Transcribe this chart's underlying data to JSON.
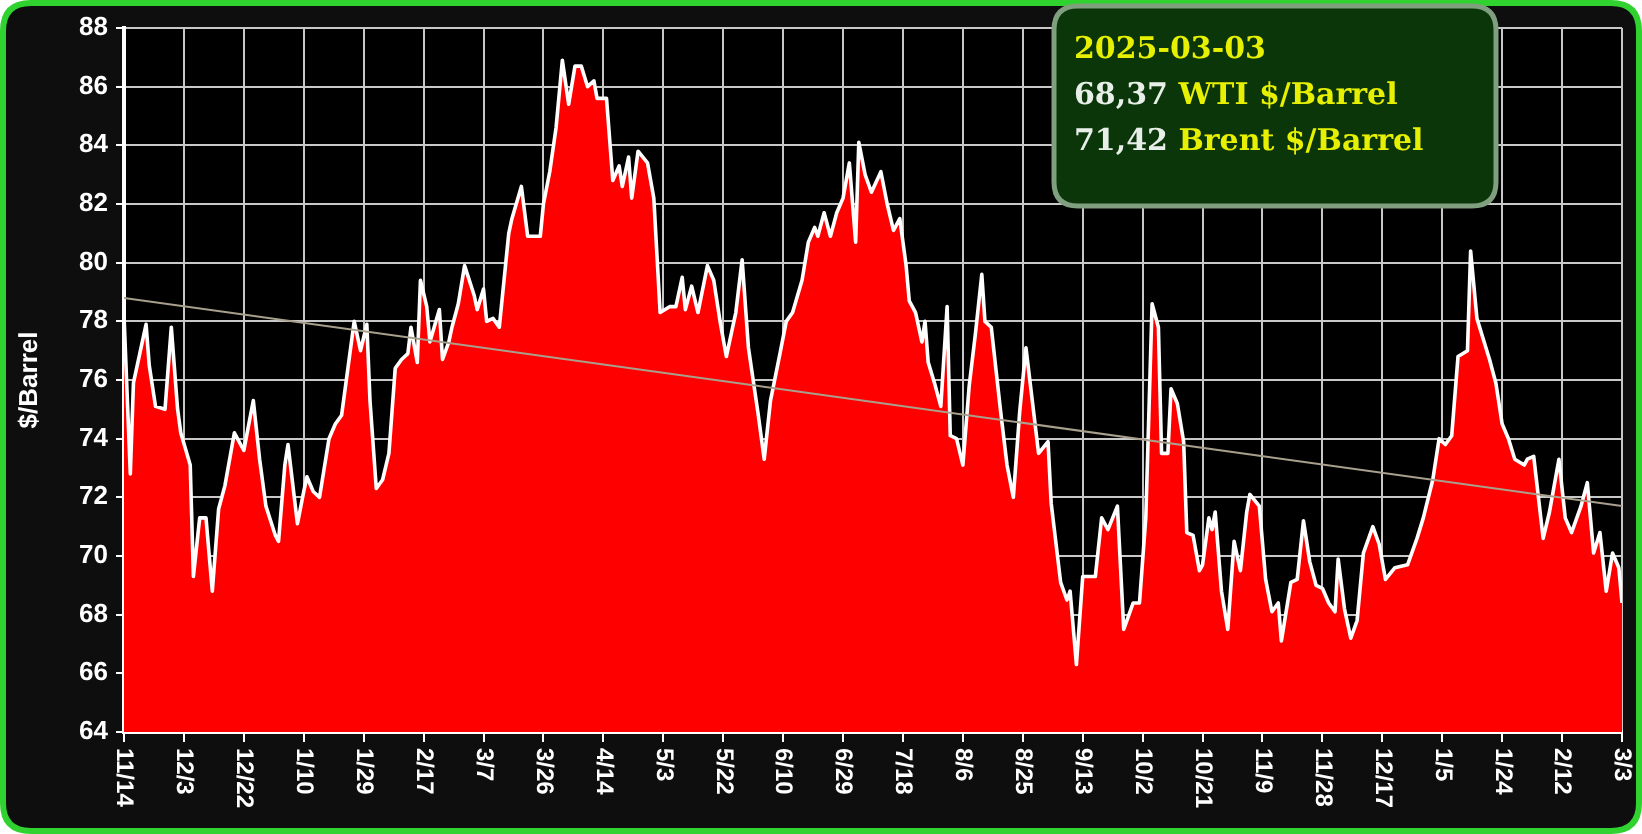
{
  "chart_data": {
    "type": "area",
    "ylabel": "$/Barrel",
    "annotations": [
      "2025-03-03",
      "68,37 WTI $/Barrel",
      "71,42 Brent $/Barrel"
    ],
    "x": [
      "2023-11-14",
      "2023-11-16",
      "2023-11-17",
      "2023-11-21",
      "2023-11-22",
      "2023-11-24",
      "2023-11-27",
      "2023-11-29",
      "2023-12-01",
      "2023-12-02",
      "2023-12-05",
      "2023-12-06",
      "2023-12-08",
      "2023-12-10",
      "2023-12-12",
      "2023-12-14",
      "2023-12-16",
      "2023-12-19",
      "2023-12-22",
      "2023-12-25",
      "2023-12-27",
      "2023-12-29",
      "2024-01-01",
      "2024-01-02",
      "2024-01-04",
      "2024-01-05",
      "2024-01-08",
      "2024-01-10",
      "2024-01-11",
      "2024-01-13",
      "2024-01-15",
      "2024-01-18",
      "2024-01-20",
      "2024-01-22",
      "2024-01-26",
      "2024-01-28",
      "2024-01-30",
      "2024-01-31",
      "2024-02-02",
      "2024-02-04",
      "2024-02-06",
      "2024-02-08",
      "2024-02-10",
      "2024-02-12",
      "2024-02-13",
      "2024-02-15",
      "2024-02-16",
      "2024-02-18",
      "2024-02-19",
      "2024-02-22",
      "2024-02-23",
      "2024-02-25",
      "2024-02-26",
      "2024-02-28",
      "2024-03-01",
      "2024-03-04",
      "2024-03-05",
      "2024-03-07",
      "2024-03-08",
      "2024-03-10",
      "2024-03-12",
      "2024-03-15",
      "2024-03-16",
      "2024-03-19",
      "2024-03-21",
      "2024-03-25",
      "2024-03-26",
      "2024-03-28",
      "2024-03-30",
      "2024-04-01",
      "2024-04-03",
      "2024-04-05",
      "2024-04-07",
      "2024-04-09",
      "2024-04-11",
      "2024-04-12",
      "2024-04-15",
      "2024-04-17",
      "2024-04-19",
      "2024-04-20",
      "2024-04-22",
      "2024-04-23",
      "2024-04-25",
      "2024-04-28",
      "2024-04-30",
      "2024-05-02",
      "2024-05-05",
      "2024-05-07",
      "2024-05-09",
      "2024-05-10",
      "2024-05-12",
      "2024-05-14",
      "2024-05-17",
      "2024-05-19",
      "2024-05-21",
      "2024-05-23",
      "2024-05-25",
      "2024-05-26",
      "2024-05-28",
      "2024-05-30",
      "2024-06-02",
      "2024-06-04",
      "2024-06-06",
      "2024-06-09",
      "2024-06-11",
      "2024-06-13",
      "2024-06-16",
      "2024-06-18",
      "2024-06-20",
      "2024-06-21",
      "2024-06-23",
      "2024-06-25",
      "2024-06-27",
      "2024-06-29",
      "2024-07-01",
      "2024-07-03",
      "2024-07-04",
      "2024-07-06",
      "2024-07-08",
      "2024-07-11",
      "2024-07-13",
      "2024-07-15",
      "2024-07-17",
      "2024-07-19",
      "2024-07-20",
      "2024-07-22",
      "2024-07-24",
      "2024-07-25",
      "2024-07-26",
      "2024-07-28",
      "2024-07-30",
      "2024-08-01",
      "2024-08-02",
      "2024-08-04",
      "2024-08-06",
      "2024-08-08",
      "2024-08-10",
      "2024-08-12",
      "2024-08-13",
      "2024-08-15",
      "2024-08-18",
      "2024-08-20",
      "2024-08-22",
      "2024-08-24",
      "2024-08-26",
      "2024-08-28",
      "2024-08-30",
      "2024-09-02",
      "2024-09-03",
      "2024-09-06",
      "2024-09-08",
      "2024-09-09",
      "2024-09-11",
      "2024-09-13",
      "2024-09-17",
      "2024-09-19",
      "2024-09-21",
      "2024-09-24",
      "2024-09-26",
      "2024-09-29",
      "2024-10-01",
      "2024-10-03",
      "2024-10-05",
      "2024-10-07",
      "2024-10-08",
      "2024-10-10",
      "2024-10-11",
      "2024-10-13",
      "2024-10-15",
      "2024-10-16",
      "2024-10-18",
      "2024-10-20",
      "2024-10-21",
      "2024-10-23",
      "2024-10-24",
      "2024-10-25",
      "2024-10-27",
      "2024-10-29",
      "2024-10-31",
      "2024-11-02",
      "2024-11-04",
      "2024-11-05",
      "2024-11-08",
      "2024-11-10",
      "2024-11-12",
      "2024-11-14",
      "2024-11-15",
      "2024-11-18",
      "2024-11-20",
      "2024-11-22",
      "2024-11-24",
      "2024-11-26",
      "2024-11-28",
      "2024-11-30",
      "2024-12-02",
      "2024-12-03",
      "2024-12-05",
      "2024-12-07",
      "2024-12-09",
      "2024-12-11",
      "2024-12-14",
      "2024-12-16",
      "2024-12-18",
      "2024-12-21",
      "2024-12-25",
      "2024-12-28",
      "2024-12-30",
      "2025-01-02",
      "2025-01-04",
      "2025-01-06",
      "2025-01-08",
      "2025-01-10",
      "2025-01-13",
      "2025-01-14",
      "2025-01-16",
      "2025-01-18",
      "2025-01-20",
      "2025-01-22",
      "2025-01-24",
      "2025-01-26",
      "2025-01-28",
      "2025-01-31",
      "2025-02-01",
      "2025-02-03",
      "2025-02-06",
      "2025-02-08",
      "2025-02-11",
      "2025-02-13",
      "2025-02-15",
      "2025-02-18",
      "2025-02-20",
      "2025-02-22",
      "2025-02-24",
      "2025-02-26",
      "2025-02-28",
      "2025-03-02",
      "2025-03-03"
    ],
    "series": [
      {
        "color": "#ff0000",
        "values": [
          78.2,
          72.8,
          75.9,
          77.9,
          76.5,
          75.1,
          75.0,
          77.8,
          75.0,
          74.2,
          73.1,
          69.3,
          71.3,
          71.3,
          68.8,
          71.6,
          72.4,
          74.2,
          73.6,
          75.3,
          73.3,
          71.7,
          70.7,
          70.5,
          73.1,
          73.8,
          71.1,
          72.2,
          72.7,
          72.2,
          72.0,
          74.0,
          74.5,
          74.8,
          78.0,
          77.0,
          77.9,
          75.3,
          72.3,
          72.6,
          73.5,
          76.4,
          76.7,
          76.9,
          77.8,
          76.6,
          79.4,
          78.5,
          77.3,
          78.4,
          76.7,
          77.3,
          77.8,
          78.6,
          79.9,
          78.9,
          78.4,
          79.1,
          78.0,
          78.1,
          77.8,
          81.0,
          81.5,
          82.6,
          80.9,
          80.9,
          82.0,
          83.1,
          84.6,
          86.9,
          85.4,
          86.7,
          86.7,
          86.0,
          86.2,
          85.6,
          85.6,
          82.8,
          83.3,
          82.6,
          83.6,
          82.2,
          83.8,
          83.4,
          82.2,
          78.3,
          78.5,
          78.5,
          79.5,
          78.4,
          79.2,
          78.3,
          79.9,
          79.4,
          78.0,
          76.8,
          77.8,
          78.3,
          80.1,
          77.1,
          74.9,
          73.3,
          75.3,
          76.9,
          78.0,
          78.3,
          79.4,
          80.7,
          81.2,
          80.9,
          81.7,
          80.9,
          81.7,
          82.2,
          83.4,
          80.7,
          84.1,
          83.0,
          82.4,
          83.1,
          82.0,
          81.1,
          81.5,
          79.9,
          78.7,
          78.3,
          77.3,
          78.0,
          76.6,
          75.9,
          75.1,
          78.5,
          74.1,
          74.0,
          73.1,
          75.8,
          77.6,
          79.6,
          78.0,
          77.8,
          74.9,
          73.1,
          72.0,
          74.9,
          77.1,
          75.3,
          73.5,
          73.9,
          71.8,
          69.1,
          68.5,
          68.8,
          66.3,
          69.3,
          69.3,
          71.3,
          70.9,
          71.7,
          67.5,
          68.4,
          68.4,
          71.3,
          78.6,
          77.8,
          73.5,
          73.5,
          75.7,
          75.2,
          73.9,
          70.8,
          70.7,
          69.5,
          69.7,
          71.3,
          70.9,
          71.5,
          68.8,
          67.5,
          70.5,
          69.5,
          71.5,
          72.1,
          71.7,
          69.2,
          68.1,
          68.4,
          67.1,
          69.1,
          69.2,
          71.2,
          69.8,
          69.0,
          68.9,
          68.4,
          68.1,
          69.9,
          68.2,
          67.2,
          67.8,
          70.1,
          71.0,
          70.4,
          69.2,
          69.6,
          69.7,
          70.6,
          71.3,
          72.6,
          74.0,
          73.8,
          74.1,
          76.8,
          77.0,
          80.4,
          78.1,
          77.4,
          76.7,
          75.9,
          74.5,
          74.0,
          73.3,
          73.1,
          73.3,
          73.4,
          70.6,
          71.5,
          73.3,
          71.3,
          70.8,
          71.7,
          72.5,
          70.1,
          70.8,
          68.8,
          70.1,
          69.6,
          68.4
        ]
      },
      {
        "type": "line",
        "color": "#a8a08c",
        "x": [
          "2023-11-14",
          "2025-03-03"
        ],
        "values": [
          78.8,
          71.7
        ]
      }
    ],
    "xlim": [
      "2023-11-14",
      "2025-03-03"
    ],
    "xticks": [
      {
        "value": "2023-11-14",
        "label": "11/14"
      },
      {
        "value": "2023-12-03",
        "label": "12/3"
      },
      {
        "value": "2023-12-22",
        "label": "12/22"
      },
      {
        "value": "2024-01-10",
        "label": "1/10"
      },
      {
        "value": "2024-01-29",
        "label": "1/29"
      },
      {
        "value": "2024-02-17",
        "label": "2/17"
      },
      {
        "value": "2024-03-07",
        "label": "3/7"
      },
      {
        "value": "2024-03-26",
        "label": "3/26"
      },
      {
        "value": "2024-04-14",
        "label": "4/14"
      },
      {
        "value": "2024-05-03",
        "label": "5/3"
      },
      {
        "value": "2024-05-22",
        "label": "5/22"
      },
      {
        "value": "2024-06-10",
        "label": "6/10"
      },
      {
        "value": "2024-06-29",
        "label": "6/29"
      },
      {
        "value": "2024-07-18",
        "label": "7/18"
      },
      {
        "value": "2024-08-06",
        "label": "8/6"
      },
      {
        "value": "2024-08-25",
        "label": "8/25"
      },
      {
        "value": "2024-09-13",
        "label": "9/13"
      },
      {
        "value": "2024-10-02",
        "label": "10/2"
      },
      {
        "value": "2024-10-21",
        "label": "10/21"
      },
      {
        "value": "2024-11-09",
        "label": "11/9"
      },
      {
        "value": "2024-11-28",
        "label": "11/28"
      },
      {
        "value": "2024-12-17",
        "label": "12/17"
      },
      {
        "value": "2025-01-05",
        "label": "1/5"
      },
      {
        "value": "2025-01-24",
        "label": "1/24"
      },
      {
        "value": "2025-02-12",
        "label": "2/12"
      },
      {
        "value": "2025-03-03",
        "label": "3/3"
      }
    ],
    "ylim": [
      64,
      88
    ],
    "yticks": [
      64,
      66,
      68,
      70,
      72,
      74,
      76,
      78,
      80,
      82,
      84,
      86,
      88
    ],
    "grid": true
  }
}
